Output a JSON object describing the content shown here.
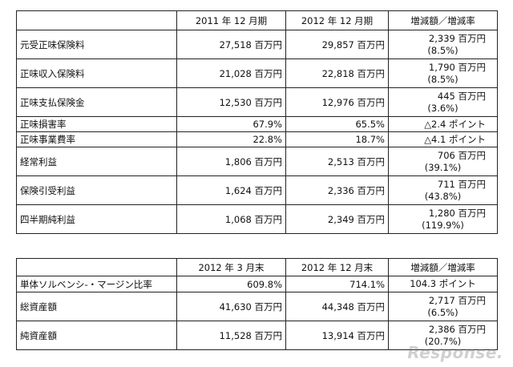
{
  "table1": {
    "headers": [
      "",
      "2011 年 12 月期",
      "2012 年 12 月期",
      "増減額／増減率"
    ],
    "rows": [
      {
        "label": "元受正味保険料",
        "a": "27,518 百万円",
        "b": "29,857 百万円",
        "c1": "2,339 百万円",
        "c2": "(8.5%)"
      },
      {
        "label": "正味収入保険料",
        "a": "21,028 百万円",
        "b": "22,818 百万円",
        "c1": "1,790 百万円",
        "c2": "(8.5%)"
      },
      {
        "label": "正味支払保険金",
        "a": "12,530 百万円",
        "b": "12,976 百万円",
        "c1": "445 百万円",
        "c2": "(3.6%)"
      },
      {
        "label": "正味損害率",
        "a": "67.9%",
        "b": "65.5%",
        "c1": "△2.4 ポイント",
        "c2": ""
      },
      {
        "label": "正味事業費率",
        "a": "22.8%",
        "b": "18.7%",
        "c1": "△4.1 ポイント",
        "c2": ""
      },
      {
        "label": "経常利益",
        "a": "1,806 百万円",
        "b": "2,513 百万円",
        "c1": "706 百万円",
        "c2": "(39.1%)"
      },
      {
        "label": "保険引受利益",
        "a": "1,624 百万円",
        "b": "2,336 百万円",
        "c1": "711 百万円",
        "c2": "(43.8%)"
      },
      {
        "label": "四半期純利益",
        "a": "1,068 百万円",
        "b": "2,349 百万円",
        "c1": "1,280 百万円",
        "c2": "(119.9%)"
      }
    ]
  },
  "table2": {
    "headers": [
      "",
      "2012 年 3 月末",
      "2012 年 12 月末",
      "増減額／増減率"
    ],
    "rows": [
      {
        "label": "単体ソルベンシ-・マージン比率",
        "a": "609.8%",
        "b": "714.1%",
        "c1": "104.3 ポイント",
        "c2": ""
      },
      {
        "label": "総資産額",
        "a": "41,630 百万円",
        "b": "44,348 百万円",
        "c1": "2,717 百万円",
        "c2": "(6.5%)"
      },
      {
        "label": "純資産額",
        "a": "11,528 百万円",
        "b": "13,914 百万円",
        "c1": "2,386 百万円",
        "c2": "(20.7%)"
      }
    ]
  },
  "watermark": "Response."
}
